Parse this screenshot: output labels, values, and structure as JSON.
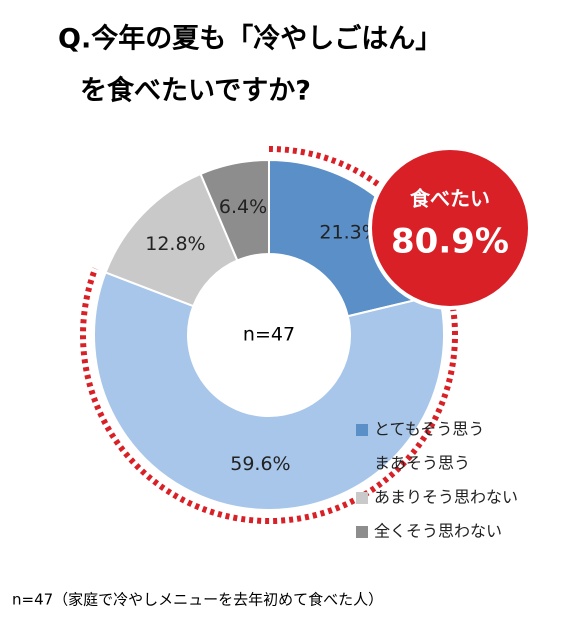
{
  "chart_data": {
    "type": "donut",
    "title": [
      "Q.今年の夏も「冷やしごはん」",
      "を食べたいですか?"
    ],
    "categories": [
      "とてもそう思う",
      "まあそう思う",
      "あまりそう思わない",
      "全くそう思わない"
    ],
    "values": [
      21.3,
      59.6,
      12.8,
      6.4
    ],
    "value_labels": [
      "21.3%",
      "59.6%",
      "12.8%",
      "6.4%"
    ],
    "colors": [
      "#5a8fc8",
      "#a7c6ea",
      "#c9c9c9",
      "#8d8d8d"
    ],
    "center_text": "n=47",
    "badge": {
      "title": "食べたい",
      "text": "80.9%",
      "color": "#d92027"
    },
    "footnote": "n=47（家庭で冷やしメニューを去年初めて食べた人）"
  }
}
